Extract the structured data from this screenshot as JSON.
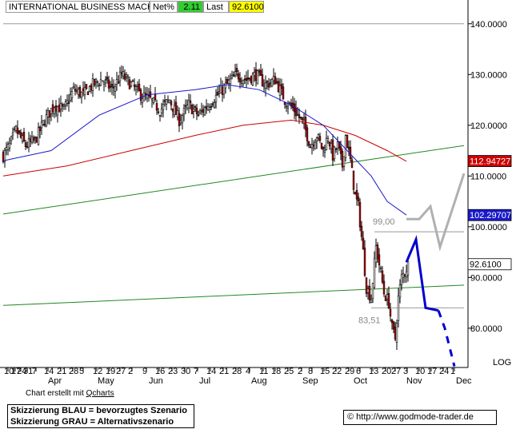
{
  "header": {
    "title": "INTERNATIONAL BUSINESS MACHS",
    "netpct_label": "Net%",
    "netpct_value": "2.11",
    "last_label": "Last",
    "last_value": "92.6100",
    "colors": {
      "net_bg": "#33cc33",
      "last_bg": "#ffff00"
    }
  },
  "chart_data": {
    "type": "candlestick",
    "ylim": [
      71,
      145
    ],
    "y_ticks": [
      {
        "value": 140,
        "label": "140.0000"
      },
      {
        "value": 130,
        "label": "130.0000"
      },
      {
        "value": 120,
        "label": "120.0000"
      },
      {
        "value": 110,
        "label": "110.0000"
      },
      {
        "value": 100,
        "label": "100.0000"
      },
      {
        "value": 90,
        "label": "90.0000"
      },
      {
        "value": 80,
        "label": "80.0000"
      }
    ],
    "y_scale_note": "LOG",
    "x_day_labels": [
      "10",
      "17",
      "24",
      "31",
      "7",
      "14",
      "21",
      "28",
      "5",
      "12",
      "19",
      "27",
      "2",
      "9",
      "16",
      "23",
      "30",
      "7",
      "14",
      "21",
      "28",
      "4",
      "11",
      "18",
      "25",
      "2",
      "8",
      "15",
      "22",
      "29",
      "6",
      "13",
      "20",
      "27",
      "3",
      "10",
      "17",
      "24",
      "1"
    ],
    "x_month_labels": [
      "Apr",
      "May",
      "Jun",
      "Jul",
      "Aug",
      "Sep",
      "Oct",
      "Nov",
      "Dec"
    ],
    "price_tags": [
      {
        "value": 112.94727,
        "label": "112.94727",
        "color": "#cc0000"
      },
      {
        "value": 102.29707,
        "label": "102.29707",
        "color": "#1a1acc"
      },
      {
        "value": 92.61,
        "label": "92.6100",
        "color": "#ffffff"
      }
    ],
    "annotations": [
      {
        "text": "99,00",
        "value": 99.0
      },
      {
        "text": "83,51",
        "value": 83.51
      }
    ],
    "key_closes": [
      [
        0,
        114
      ],
      [
        4,
        116
      ],
      [
        8,
        119
      ],
      [
        14,
        116
      ],
      [
        20,
        117
      ],
      [
        26,
        121
      ],
      [
        32,
        124
      ],
      [
        38,
        123
      ],
      [
        44,
        127
      ],
      [
        50,
        126
      ],
      [
        56,
        128
      ],
      [
        62,
        129
      ],
      [
        68,
        127
      ],
      [
        74,
        130
      ],
      [
        80,
        128
      ],
      [
        86,
        126
      ],
      [
        92,
        125
      ],
      [
        98,
        123
      ],
      [
        104,
        125
      ],
      [
        110,
        121
      ],
      [
        116,
        124
      ],
      [
        122,
        122
      ],
      [
        128,
        124
      ],
      [
        134,
        126
      ],
      [
        140,
        128
      ],
      [
        146,
        130
      ],
      [
        152,
        129
      ],
      [
        158,
        130
      ],
      [
        164,
        128
      ],
      [
        170,
        129
      ],
      [
        176,
        125
      ],
      [
        182,
        123
      ],
      [
        188,
        120
      ],
      [
        192,
        116
      ],
      [
        196,
        118
      ],
      [
        200,
        115
      ],
      [
        203,
        118
      ],
      [
        206,
        114
      ],
      [
        209,
        116
      ],
      [
        212,
        112
      ],
      [
        214,
        118
      ],
      [
        217,
        113
      ],
      [
        220,
        106
      ],
      [
        222,
        104
      ],
      [
        225,
        95
      ],
      [
        227,
        88
      ],
      [
        230,
        86
      ],
      [
        233,
        96
      ],
      [
        236,
        91
      ],
      [
        238,
        87
      ],
      [
        241,
        85
      ],
      [
        243,
        80
      ],
      [
        245,
        78
      ],
      [
        247,
        86
      ],
      [
        249,
        90
      ],
      [
        251,
        91
      ],
      [
        253,
        92.61
      ]
    ],
    "sma_blue_key": [
      [
        0,
        113
      ],
      [
        30,
        115
      ],
      [
        60,
        122
      ],
      [
        90,
        126
      ],
      [
        120,
        127
      ],
      [
        140,
        128
      ],
      [
        160,
        127
      ],
      [
        180,
        124
      ],
      [
        200,
        120
      ],
      [
        215,
        115
      ],
      [
        230,
        110
      ],
      [
        240,
        105
      ],
      [
        252,
        102.3
      ]
    ],
    "sma_red_key": [
      [
        0,
        110
      ],
      [
        40,
        112
      ],
      [
        80,
        115
      ],
      [
        120,
        118
      ],
      [
        150,
        120
      ],
      [
        180,
        121
      ],
      [
        200,
        120
      ],
      [
        220,
        118
      ],
      [
        240,
        115
      ],
      [
        252,
        112.9
      ]
    ],
    "trendlines": [
      {
        "color": "#228822",
        "points": [
          [
            0,
            102.5
          ],
          [
            288,
            116
          ]
        ]
      },
      {
        "color": "#228822",
        "points": [
          [
            0,
            84.5
          ],
          [
            288,
            88.5
          ]
        ]
      }
    ],
    "horizontal_levels": [
      {
        "value": 140,
        "from": 0,
        "to": 288,
        "color": "#999999"
      },
      {
        "value": 99,
        "from": 232,
        "to": 288,
        "color": "#999999"
      },
      {
        "value": 84,
        "from": 230,
        "to": 288,
        "color": "#999999"
      }
    ],
    "scenario_blue": [
      [
        252,
        93
      ],
      [
        258,
        97.5
      ],
      [
        264,
        84
      ],
      [
        272,
        83.5
      ],
      [
        276,
        80
      ],
      [
        282,
        72.5
      ]
    ],
    "scenario_gray": [
      [
        252,
        101.5
      ],
      [
        260,
        101.5
      ],
      [
        267,
        104
      ],
      [
        273,
        96
      ],
      [
        288,
        110.5
      ]
    ]
  },
  "footer": {
    "credit_prefix": "Chart erstellt mit ",
    "credit_link": "Qcharts",
    "legend_line1": "Skizzierung BLAU = bevorzugtes Szenario",
    "legend_line2": "Skizzierung GRAU = Alternativszenario",
    "url": "© http://www.godmode-trader.de"
  }
}
